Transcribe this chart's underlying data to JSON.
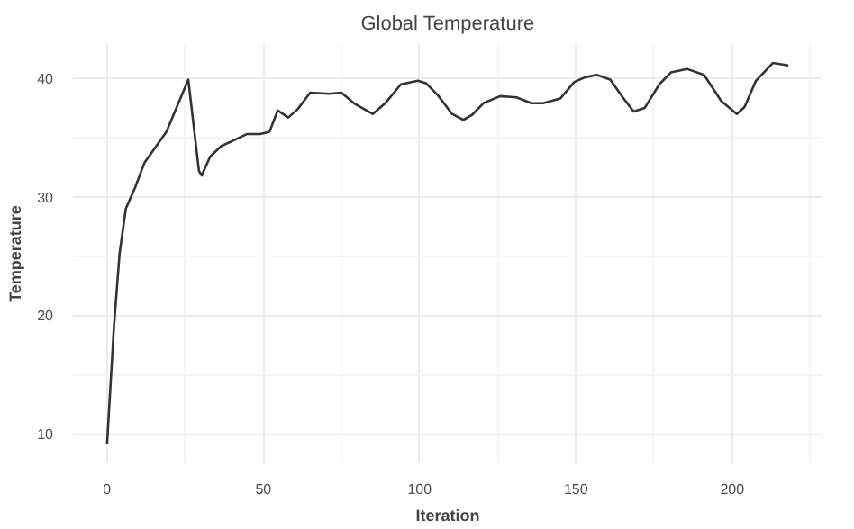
{
  "chart_data": {
    "type": "line",
    "title": "Global Temperature",
    "xlabel": "Iteration",
    "ylabel": "Temperature",
    "x": [
      0,
      2.2,
      4,
      6,
      9,
      12,
      19,
      26,
      29.4,
      30.3,
      33,
      36.6,
      40,
      44.7,
      49,
      52,
      54.6,
      58,
      61,
      65,
      71,
      75,
      79,
      85,
      89,
      94,
      99.5,
      102,
      105.8,
      110.4,
      114,
      116.7,
      120.4,
      125.8,
      131,
      135.8,
      139.5,
      145,
      149.5,
      153,
      156.7,
      161,
      165,
      168.5,
      172,
      176.7,
      180.4,
      185.5,
      191,
      196.5,
      201.5,
      204,
      207.6,
      213,
      218
    ],
    "series": [
      {
        "color": "#333333",
        "values": [
          9.1,
          19,
          25.2,
          29,
          30.8,
          32.9,
          35.5,
          39.9,
          32.2,
          31.8,
          33.4,
          34.3,
          34.7,
          35.3,
          35.3,
          35.5,
          37.3,
          36.7,
          37.4,
          38.8,
          38.7,
          38.8,
          37.9,
          37.0,
          37.9,
          39.5,
          39.8,
          39.6,
          38.6,
          37.0,
          36.5,
          36.9,
          37.9,
          38.5,
          38.4,
          37.9,
          37.9,
          38.3,
          39.7,
          40.1,
          40.3,
          39.9,
          38.4,
          37.2,
          37.5,
          39.5,
          40.5,
          40.8,
          40.3,
          38.1,
          37.0,
          37.6,
          39.8,
          41.3,
          41.1
        ]
      }
    ],
    "xlim": [
      -10.9,
      228.9
    ],
    "ylim": [
      7.5,
      42.9
    ],
    "xticks": [
      0,
      50,
      100,
      150,
      200
    ],
    "yticks": [
      10,
      20,
      30,
      40
    ],
    "grid": true,
    "line_style": "solid",
    "marker": "none"
  }
}
